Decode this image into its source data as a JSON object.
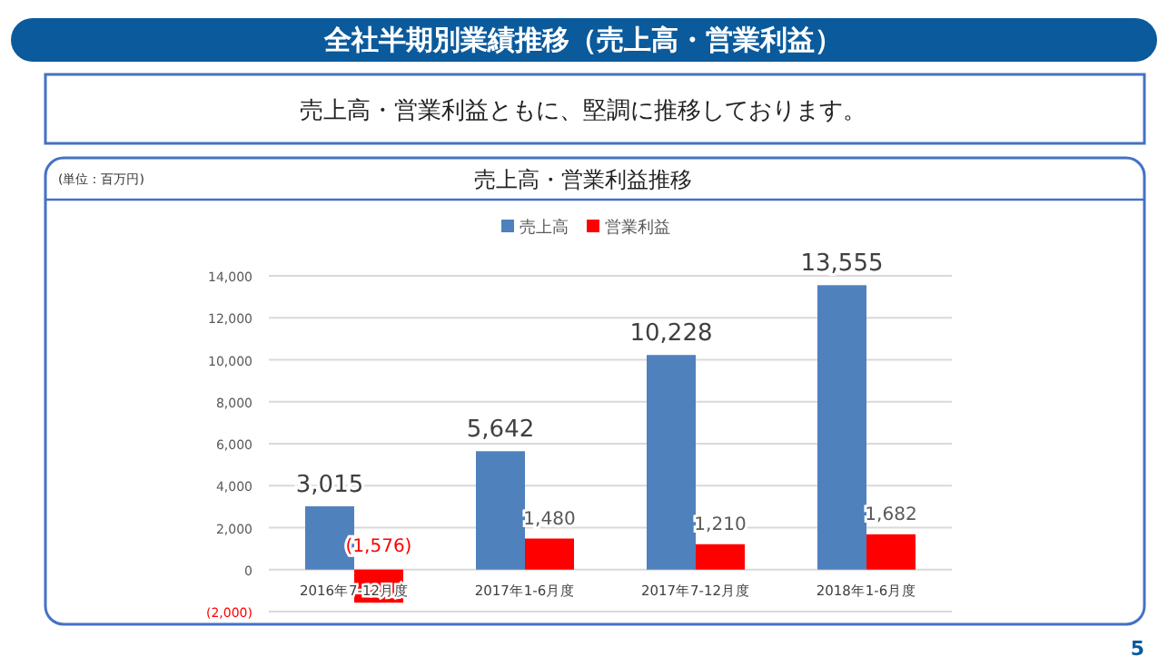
{
  "chart_data": {
    "type": "bar",
    "title": "全社半期別業績推移（売上高・営業利益）",
    "subtitle": "売上高・営業利益ともに、堅調に推移しております。",
    "annotations": [
      "(単位：百万円)",
      "売上高・営業利益推移",
      "5"
    ],
    "categories": [
      "2016年7-12月度",
      "2017年1-6月度",
      "2017年7-12月度",
      "2018年1-6月度"
    ],
    "series": [
      {
        "name": "売上高",
        "color": "#4f81bd",
        "values": [
          3015,
          5642,
          10228,
          13555
        ],
        "value_labels": [
          "3,015",
          "5,642",
          "10,228",
          "13,555"
        ]
      },
      {
        "name": "営業利益",
        "color": "#ff0000",
        "values": [
          -1576,
          1480,
          1210,
          1682
        ],
        "value_labels": [
          "(1,576)",
          "1,480",
          "1,210",
          "1,682"
        ]
      }
    ],
    "ylim": [
      -2000,
      14000
    ],
    "yticks": [
      {
        "value": -2000,
        "label": "(2,000)"
      },
      {
        "value": 0,
        "label": "0"
      },
      {
        "value": 2000,
        "label": "2,000"
      },
      {
        "value": 4000,
        "label": "4,000"
      },
      {
        "value": 6000,
        "label": "6,000"
      },
      {
        "value": 8000,
        "label": "8,000"
      },
      {
        "value": 10000,
        "label": "10,000"
      },
      {
        "value": 12000,
        "label": "12,000"
      },
      {
        "value": 14000,
        "label": "14,000"
      }
    ],
    "grid": "y",
    "legend": "top"
  }
}
